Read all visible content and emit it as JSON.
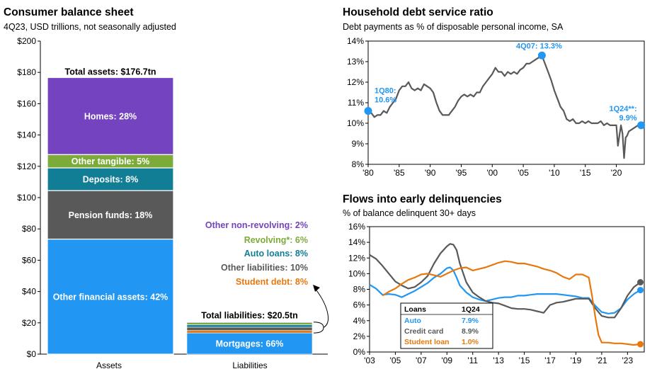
{
  "panels": {
    "balance": {
      "title": "Consumer balance sheet",
      "subtitle": "4Q23, USD trillions, not seasonally adjusted"
    },
    "dsr": {
      "title": "Household debt service ratio",
      "subtitle": "Debt payments as % of disposable personal income, SA"
    },
    "delinq": {
      "title": "Flows into early delinquencies",
      "subtitle": "% of balance delinquent 30+ days"
    }
  },
  "chart_data": [
    {
      "type": "bar",
      "stacked": true,
      "categories": [
        "Assets",
        "Liabilities"
      ],
      "ylim": [
        0,
        200
      ],
      "yticks": [
        "$0",
        "$20",
        "$40",
        "$60",
        "$80",
        "$100",
        "$120",
        "$140",
        "$160",
        "$180",
        "$200"
      ],
      "ytick_values": [
        0,
        20,
        40,
        60,
        80,
        100,
        120,
        140,
        160,
        180,
        200
      ],
      "assets_total_label": "Total assets: $176.7tn",
      "assets_total": 176.7,
      "assets": [
        {
          "name": "Other financial assets: 42%",
          "value": 73.5,
          "color": "#2196f3"
        },
        {
          "name": "Pension funds: 18%",
          "value": 31.0,
          "color": "#595959"
        },
        {
          "name": "Deposits: 8%",
          "value": 14.5,
          "color": "#127e95"
        },
        {
          "name": "Other tangible: 5%",
          "value": 8.5,
          "color": "#7cab3a"
        },
        {
          "name": "Homes: 28%",
          "value": 49.2,
          "color": "#7443bf"
        }
      ],
      "liabilities_total_label": "Total liabilities: $20.5tn",
      "liabilities_total": 20.5,
      "liabilities": [
        {
          "name": "Mortgages: 66%",
          "value": 13.5,
          "color": "#2196f3"
        },
        {
          "name": "Student debt: 8%",
          "value": 1.6,
          "color": "#e6780e"
        },
        {
          "name": "Other liabilities: 10%",
          "value": 2.1,
          "color": "#595959"
        },
        {
          "name": "Auto loans: 8%",
          "value": 1.6,
          "color": "#127e95"
        },
        {
          "name": "Revolving*: 6%",
          "value": 1.3,
          "color": "#7cab3a"
        },
        {
          "name": "Other non-revolving: 2%",
          "value": 0.4,
          "color": "#7443bf"
        }
      ]
    },
    {
      "type": "line",
      "ylim": [
        8,
        14
      ],
      "yticks": [
        "8%",
        "9%",
        "10%",
        "11%",
        "12%",
        "13%",
        "14%"
      ],
      "ytick_values": [
        8,
        9,
        10,
        11,
        12,
        13,
        14
      ],
      "xlim": [
        1980,
        2024.5
      ],
      "xticks": [
        "'80",
        "'85",
        "'90",
        "'95",
        "'00",
        "'05",
        "'10",
        "'15",
        "'20"
      ],
      "xtick_values": [
        1980,
        1985,
        1990,
        1995,
        2000,
        2005,
        2010,
        2015,
        2020
      ],
      "series": [
        {
          "color": "#595959",
          "x": [
            1980,
            1980.5,
            1981,
            1981.5,
            1982,
            1982.5,
            1983,
            1983.5,
            1984,
            1984.5,
            1985,
            1985.5,
            1986,
            1986.5,
            1987,
            1987.5,
            1988,
            1988.5,
            1989,
            1989.5,
            1990,
            1990.5,
            1991,
            1991.5,
            1992,
            1992.5,
            1993,
            1993.5,
            1994,
            1994.5,
            1995,
            1995.5,
            1996,
            1996.5,
            1997,
            1997.5,
            1998,
            1998.5,
            1999,
            1999.5,
            2000,
            2000.5,
            2001,
            2001.5,
            2002,
            2002.5,
            2003,
            2003.5,
            2004,
            2004.5,
            2005,
            2005.5,
            2006,
            2006.5,
            2007,
            2007.5,
            2008,
            2008.5,
            2009,
            2009.5,
            2010,
            2010.5,
            2011,
            2011.5,
            2012,
            2012.5,
            2013,
            2013.5,
            2014,
            2014.5,
            2015,
            2015.5,
            2016,
            2016.5,
            2017,
            2017.5,
            2018,
            2018.5,
            2019,
            2019.5,
            2020,
            2020.25,
            2020.5,
            2020.75,
            2021,
            2021.25,
            2021.5,
            2021.75,
            2022,
            2022.5,
            2023,
            2023.5,
            2024
          ],
          "y": [
            10.6,
            10.5,
            10.3,
            10.4,
            10.4,
            10.6,
            10.5,
            10.8,
            11.0,
            11.2,
            11.6,
            11.8,
            11.8,
            12.0,
            11.7,
            11.6,
            11.7,
            11.6,
            11.9,
            11.8,
            11.7,
            11.5,
            11.0,
            10.6,
            10.4,
            10.4,
            10.4,
            10.6,
            10.8,
            11.1,
            11.3,
            11.4,
            11.3,
            11.4,
            11.3,
            11.5,
            11.5,
            11.8,
            12.0,
            12.2,
            12.4,
            12.7,
            12.5,
            12.5,
            12.3,
            12.5,
            12.4,
            12.5,
            12.4,
            12.6,
            12.7,
            12.9,
            12.9,
            13.0,
            13.1,
            13.2,
            13.3,
            12.9,
            12.5,
            12.1,
            11.6,
            11.2,
            10.8,
            10.6,
            10.2,
            10.1,
            10.2,
            10.0,
            10.0,
            10.1,
            10.0,
            10.1,
            10.0,
            10.0,
            10.0,
            10.1,
            9.9,
            10.0,
            9.9,
            9.9,
            9.9,
            8.9,
            9.4,
            9.9,
            9.5,
            8.3,
            9.3,
            9.4,
            9.6,
            9.7,
            9.8,
            9.9,
            9.9
          ]
        }
      ],
      "annotations": [
        {
          "text": "4Q07:  13.3%",
          "x": 2008,
          "y": 13.3
        },
        {
          "text": "1Q80:",
          "text2": "10.6%",
          "x": 1980,
          "y": 10.6
        },
        {
          "text": "1Q24**:",
          "text2": "9.9%",
          "x": 2024,
          "y": 9.9
        }
      ]
    },
    {
      "type": "line",
      "ylim": [
        0,
        16
      ],
      "yticks": [
        "0%",
        "2%",
        "4%",
        "6%",
        "8%",
        "10%",
        "12%",
        "14%",
        "16%"
      ],
      "ytick_values": [
        0,
        2,
        4,
        6,
        8,
        10,
        12,
        14,
        16
      ],
      "xlim": [
        2003,
        2024.3
      ],
      "xticks": [
        "'03",
        "'05",
        "'07",
        "'09",
        "'11",
        "'13",
        "'15",
        "'17",
        "'19",
        "'21",
        "'23"
      ],
      "xtick_values": [
        2003,
        2005,
        2007,
        2009,
        2011,
        2013,
        2015,
        2017,
        2019,
        2021,
        2023
      ],
      "legend": {
        "header": [
          "Loans",
          "1Q24"
        ],
        "rows": [
          [
            "Auto",
            "7.9%"
          ],
          [
            "Credit card",
            "8.9%"
          ],
          [
            "Student loan",
            "1.0%"
          ]
        ]
      },
      "series": [
        {
          "name": "Auto",
          "color": "#2196f3",
          "x": [
            2003,
            2003.5,
            2004,
            2004.5,
            2005,
            2005.5,
            2006,
            2006.5,
            2007,
            2007.5,
            2008,
            2008.5,
            2009,
            2009.25,
            2009.5,
            2009.75,
            2010,
            2010.5,
            2011,
            2011.5,
            2012,
            2012.5,
            2013,
            2013.5,
            2014,
            2014.5,
            2015,
            2015.5,
            2016,
            2016.5,
            2017,
            2017.5,
            2018,
            2018.5,
            2019,
            2019.5,
            2020,
            2020.5,
            2021,
            2021.5,
            2022,
            2022.5,
            2023,
            2023.5,
            2024
          ],
          "y": [
            8.6,
            8.1,
            7.3,
            7.4,
            7.3,
            7.0,
            7.4,
            7.8,
            8.3,
            8.8,
            9.5,
            10.0,
            10.7,
            10.8,
            10.4,
            9.5,
            8.5,
            7.6,
            7.0,
            6.7,
            6.5,
            6.7,
            6.9,
            7.0,
            7.0,
            7.2,
            7.2,
            7.3,
            7.4,
            7.4,
            7.4,
            7.4,
            7.3,
            7.2,
            7.1,
            6.9,
            6.9,
            5.9,
            5.1,
            4.9,
            5.0,
            5.6,
            6.7,
            7.4,
            7.9
          ]
        },
        {
          "name": "Credit card",
          "color": "#595959",
          "x": [
            2003,
            2003.5,
            2004,
            2004.5,
            2005,
            2005.5,
            2006,
            2006.5,
            2007,
            2007.5,
            2008,
            2008.5,
            2009,
            2009.25,
            2009.5,
            2009.75,
            2010,
            2010.5,
            2011,
            2011.5,
            2012,
            2012.5,
            2013,
            2013.5,
            2014,
            2014.5,
            2015,
            2015.5,
            2016,
            2016.5,
            2017,
            2017.5,
            2018,
            2018.5,
            2019,
            2019.5,
            2020,
            2020.5,
            2021,
            2021.5,
            2022,
            2022.5,
            2023,
            2023.5,
            2024
          ],
          "y": [
            12.4,
            11.9,
            11.0,
            10.0,
            9.0,
            8.5,
            8.1,
            8.3,
            8.9,
            9.7,
            11.3,
            12.6,
            13.5,
            13.8,
            13.7,
            13.0,
            11.3,
            8.9,
            7.6,
            7.0,
            6.5,
            6.3,
            6.2,
            5.9,
            5.6,
            5.5,
            5.5,
            5.4,
            5.2,
            5.0,
            6.0,
            6.3,
            6.4,
            6.6,
            6.8,
            6.8,
            6.8,
            5.6,
            4.6,
            4.4,
            4.4,
            5.6,
            7.2,
            8.3,
            8.9
          ]
        },
        {
          "name": "Student loan",
          "color": "#e6780e",
          "x": [
            2004,
            2004.5,
            2005,
            2005.5,
            2006,
            2006.5,
            2007,
            2007.5,
            2008,
            2008.5,
            2009,
            2009.5,
            2010,
            2010.5,
            2011,
            2011.5,
            2012,
            2012.5,
            2013,
            2013.5,
            2014,
            2014.5,
            2015,
            2015.5,
            2016,
            2016.5,
            2017,
            2017.5,
            2018,
            2018.5,
            2019,
            2019.5,
            2020,
            2020.25,
            2020.5,
            2020.75,
            2021,
            2021.5,
            2022,
            2022.5,
            2023,
            2023.5,
            2024
          ],
          "y": [
            7.2,
            7.7,
            8.1,
            8.7,
            9.2,
            9.5,
            9.9,
            10.0,
            9.8,
            9.6,
            10.0,
            10.4,
            10.7,
            10.8,
            10.4,
            10.6,
            10.8,
            11.1,
            11.4,
            11.6,
            11.5,
            11.3,
            11.3,
            11.1,
            10.9,
            10.6,
            10.4,
            10.1,
            9.6,
            9.3,
            9.9,
            9.9,
            9.5,
            7.2,
            4.5,
            2.2,
            1.2,
            1.2,
            1.1,
            1.1,
            1.0,
            0.9,
            1.0
          ]
        }
      ]
    }
  ],
  "colors": {
    "blue": "#2196f3",
    "gray": "#595959",
    "orange": "#e6780e",
    "purple": "#7443bf",
    "green": "#7cab3a",
    "teal": "#127e95"
  }
}
